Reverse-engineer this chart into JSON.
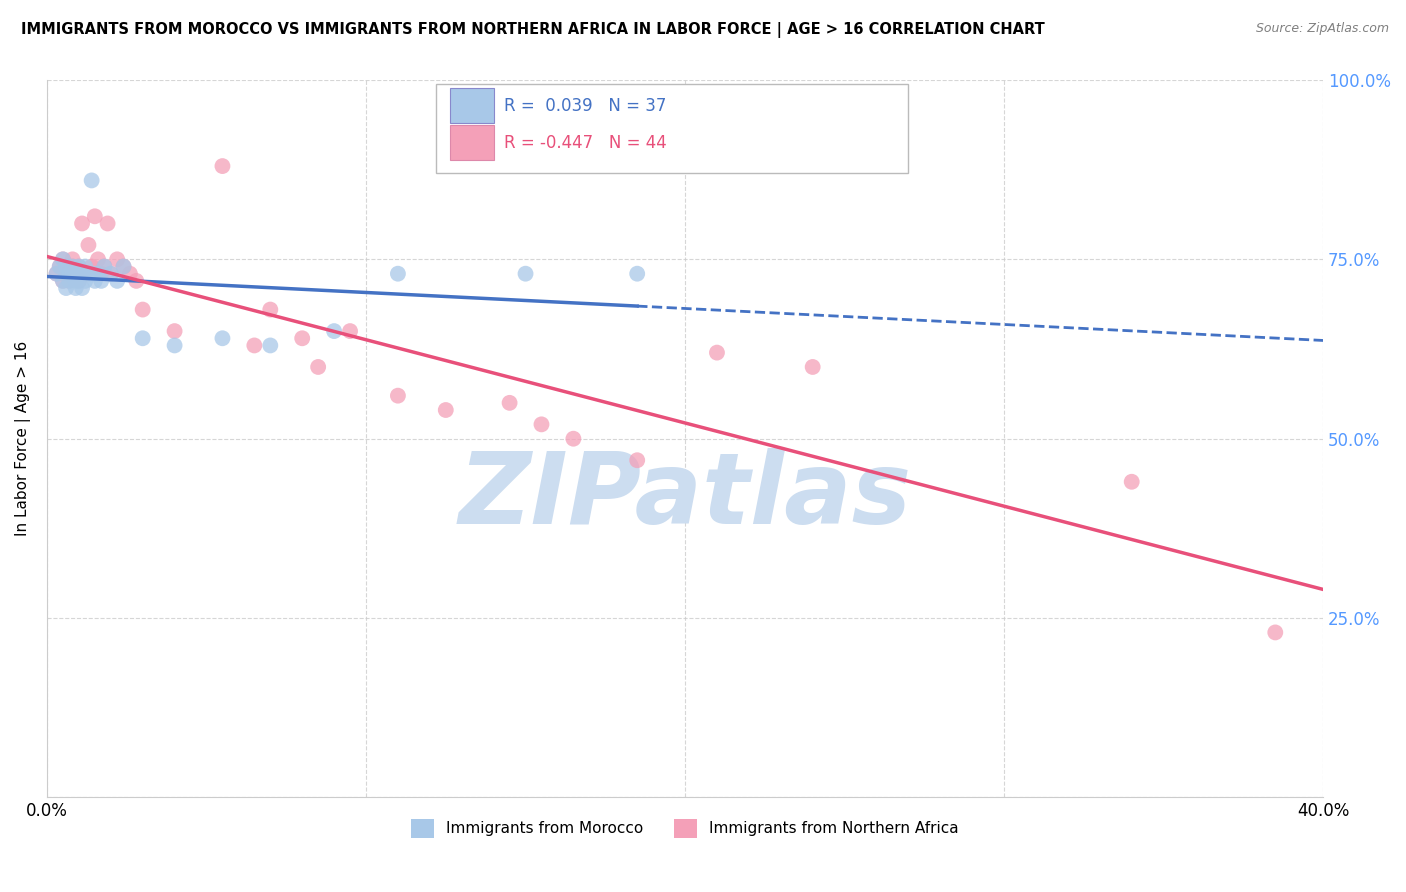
{
  "title": "IMMIGRANTS FROM MOROCCO VS IMMIGRANTS FROM NORTHERN AFRICA IN LABOR FORCE | AGE > 16 CORRELATION CHART",
  "source": "Source: ZipAtlas.com",
  "ylabel": "In Labor Force | Age > 16",
  "xlim": [
    0.0,
    0.4
  ],
  "ylim": [
    0.0,
    1.0
  ],
  "R_morocco": 0.039,
  "N_morocco": 37,
  "R_northern": -0.447,
  "N_northern": 44,
  "color_morocco": "#a8c8e8",
  "color_northern": "#f4a0b8",
  "color_line_morocco": "#4472c4",
  "color_line_northern": "#e8507a",
  "morocco_x": [
    0.003,
    0.004,
    0.005,
    0.005,
    0.006,
    0.006,
    0.007,
    0.007,
    0.008,
    0.008,
    0.009,
    0.009,
    0.01,
    0.01,
    0.01,
    0.011,
    0.011,
    0.012,
    0.012,
    0.013,
    0.014,
    0.015,
    0.015,
    0.016,
    0.017,
    0.018,
    0.02,
    0.022,
    0.024,
    0.03,
    0.04,
    0.055,
    0.07,
    0.09,
    0.11,
    0.15,
    0.185
  ],
  "morocco_y": [
    0.73,
    0.74,
    0.72,
    0.75,
    0.71,
    0.74,
    0.73,
    0.72,
    0.74,
    0.73,
    0.72,
    0.71,
    0.73,
    0.72,
    0.74,
    0.73,
    0.71,
    0.72,
    0.74,
    0.73,
    0.86,
    0.73,
    0.72,
    0.73,
    0.72,
    0.74,
    0.73,
    0.72,
    0.74,
    0.64,
    0.63,
    0.64,
    0.63,
    0.65,
    0.73,
    0.73,
    0.73
  ],
  "northern_x": [
    0.003,
    0.004,
    0.005,
    0.005,
    0.006,
    0.007,
    0.007,
    0.008,
    0.008,
    0.009,
    0.01,
    0.01,
    0.011,
    0.012,
    0.013,
    0.014,
    0.015,
    0.016,
    0.017,
    0.018,
    0.019,
    0.02,
    0.022,
    0.024,
    0.026,
    0.028,
    0.03,
    0.04,
    0.055,
    0.065,
    0.07,
    0.08,
    0.085,
    0.095,
    0.11,
    0.125,
    0.145,
    0.155,
    0.165,
    0.185,
    0.21,
    0.24,
    0.34,
    0.385
  ],
  "northern_y": [
    0.73,
    0.74,
    0.72,
    0.75,
    0.73,
    0.74,
    0.72,
    0.75,
    0.74,
    0.73,
    0.72,
    0.74,
    0.8,
    0.73,
    0.77,
    0.74,
    0.81,
    0.75,
    0.73,
    0.74,
    0.8,
    0.73,
    0.75,
    0.74,
    0.73,
    0.72,
    0.68,
    0.65,
    0.88,
    0.63,
    0.68,
    0.64,
    0.6,
    0.65,
    0.56,
    0.54,
    0.55,
    0.52,
    0.5,
    0.47,
    0.62,
    0.6,
    0.44,
    0.23
  ],
  "background_color": "#ffffff",
  "grid_color": "#cccccc",
  "watermark": "ZIPatlas",
  "watermark_color": "#ccddf0",
  "right_tick_color": "#5599ff"
}
